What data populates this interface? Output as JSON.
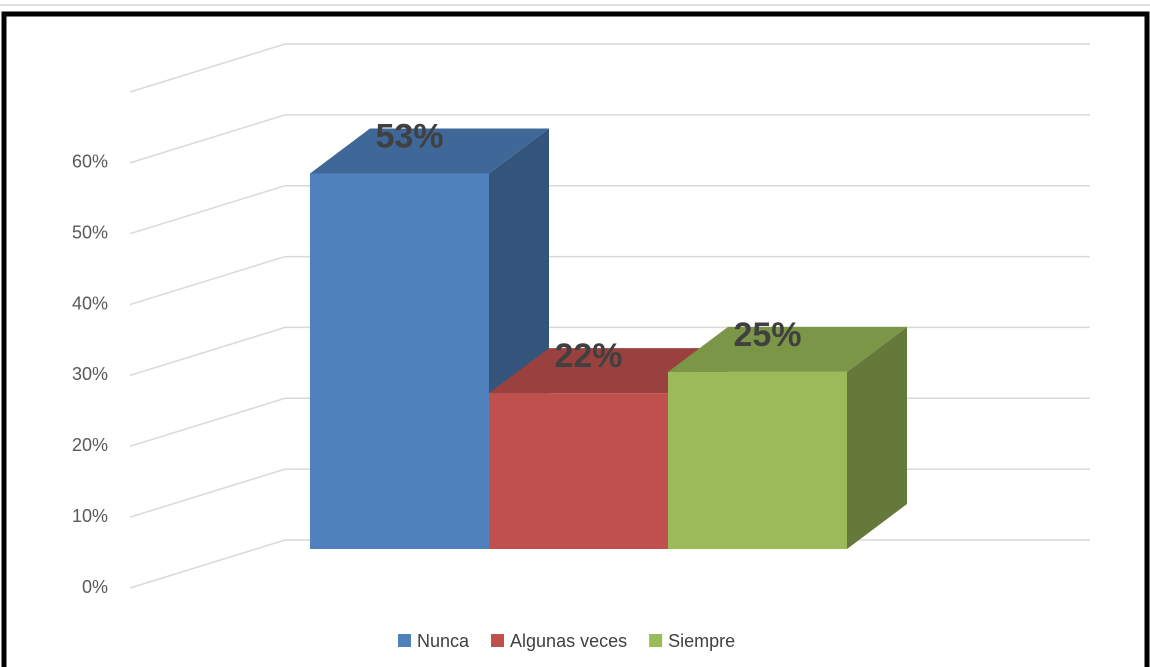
{
  "chart_data": {
    "type": "bar3d",
    "categories": [
      "Nunca",
      "Algunas veces",
      "Siempre"
    ],
    "values": [
      53,
      22,
      25
    ],
    "value_labels": [
      "53%",
      "22%",
      "25%"
    ],
    "colors": [
      "#4f81bd",
      "#c0504d",
      "#9bbb59"
    ],
    "ylim": [
      0,
      70
    ],
    "yticks": [
      {
        "value": 0,
        "label": "0%"
      },
      {
        "value": 10,
        "label": "10%"
      },
      {
        "value": 20,
        "label": "20%"
      },
      {
        "value": 30,
        "label": "30%"
      },
      {
        "value": 40,
        "label": "40%"
      },
      {
        "value": 50,
        "label": "50%"
      },
      {
        "value": 60,
        "label": "60%"
      }
    ],
    "grid": true,
    "legend": "bottom"
  }
}
